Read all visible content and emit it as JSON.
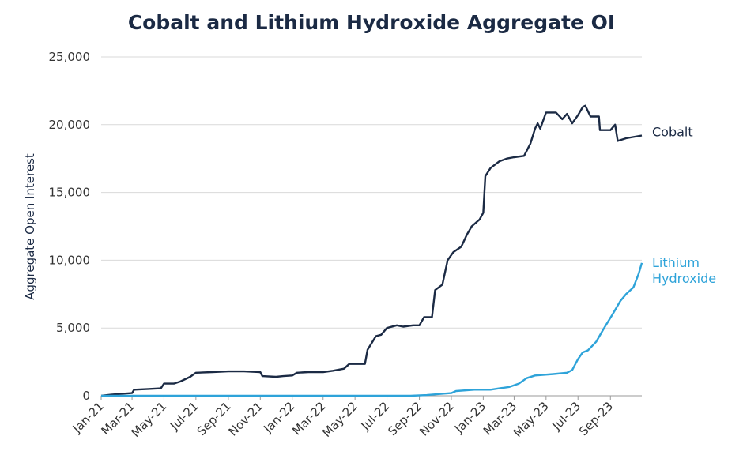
{
  "chart_data": {
    "type": "line",
    "title": "Cobalt and Lithium Hydroxide Aggregate OI",
    "xlabel": "",
    "ylabel": "Aggregate Open Interest",
    "ylim": [
      0,
      25000
    ],
    "y_ticks": [
      "0",
      "5,000",
      "10,000",
      "15,000",
      "20,000",
      "25,000"
    ],
    "x_ticks": [
      "Jan-21",
      "Mar-21",
      "May-21",
      "Jul-21",
      "Sep-21",
      "Nov-21",
      "Jan-22",
      "Mar-22",
      "May-22",
      "Jul-22",
      "Sep-22",
      "Nov-22",
      "Jan-23",
      "Mar-23",
      "May-23",
      "Jul-23",
      "Sep-23"
    ],
    "x_range": [
      "2021-01-01",
      "2023-10-31"
    ],
    "grid": "horizontal",
    "legend": "inline labels at line ends (right)",
    "series": [
      {
        "name": "Cobalt",
        "color": "#1b2a44",
        "points": [
          [
            "2021-01-01",
            0
          ],
          [
            "2021-01-20",
            80
          ],
          [
            "2021-02-10",
            150
          ],
          [
            "2021-03-01",
            200
          ],
          [
            "2021-03-05",
            450
          ],
          [
            "2021-04-01",
            500
          ],
          [
            "2021-04-25",
            550
          ],
          [
            "2021-05-01",
            900
          ],
          [
            "2021-05-20",
            900
          ],
          [
            "2021-06-01",
            1050
          ],
          [
            "2021-06-20",
            1400
          ],
          [
            "2021-07-01",
            1700
          ],
          [
            "2021-08-01",
            1750
          ],
          [
            "2021-09-01",
            1800
          ],
          [
            "2021-10-01",
            1800
          ],
          [
            "2021-11-01",
            1750
          ],
          [
            "2021-11-05",
            1450
          ],
          [
            "2021-12-01",
            1400
          ],
          [
            "2021-12-15",
            1450
          ],
          [
            "2022-01-01",
            1500
          ],
          [
            "2022-01-10",
            1700
          ],
          [
            "2022-02-01",
            1750
          ],
          [
            "2022-03-01",
            1750
          ],
          [
            "2022-03-20",
            1850
          ],
          [
            "2022-04-10",
            2000
          ],
          [
            "2022-04-20",
            2350
          ],
          [
            "2022-05-20",
            2350
          ],
          [
            "2022-05-25",
            3400
          ],
          [
            "2022-06-10",
            4400
          ],
          [
            "2022-06-20",
            4500
          ],
          [
            "2022-07-01",
            5000
          ],
          [
            "2022-07-20",
            5200
          ],
          [
            "2022-08-01",
            5100
          ],
          [
            "2022-08-20",
            5200
          ],
          [
            "2022-09-01",
            5200
          ],
          [
            "2022-09-10",
            5800
          ],
          [
            "2022-09-25",
            5800
          ],
          [
            "2022-10-01",
            7800
          ],
          [
            "2022-10-15",
            8200
          ],
          [
            "2022-10-25",
            10000
          ],
          [
            "2022-11-05",
            10600
          ],
          [
            "2022-11-20",
            11000
          ],
          [
            "2022-12-01",
            11900
          ],
          [
            "2022-12-10",
            12500
          ],
          [
            "2022-12-25",
            13000
          ],
          [
            "2023-01-01",
            13500
          ],
          [
            "2023-01-05",
            16200
          ],
          [
            "2023-01-15",
            16800
          ],
          [
            "2023-02-01",
            17300
          ],
          [
            "2023-02-15",
            17500
          ],
          [
            "2023-03-01",
            17600
          ],
          [
            "2023-03-20",
            17700
          ],
          [
            "2023-04-01",
            18600
          ],
          [
            "2023-04-10",
            19700
          ],
          [
            "2023-04-15",
            20100
          ],
          [
            "2023-04-20",
            19700
          ],
          [
            "2023-05-01",
            20900
          ],
          [
            "2023-05-20",
            20900
          ],
          [
            "2023-06-01",
            20400
          ],
          [
            "2023-06-10",
            20800
          ],
          [
            "2023-06-20",
            20100
          ],
          [
            "2023-07-01",
            20700
          ],
          [
            "2023-07-10",
            21300
          ],
          [
            "2023-07-15",
            21400
          ],
          [
            "2023-07-25",
            20600
          ],
          [
            "2023-08-10",
            20600
          ],
          [
            "2023-08-12",
            19600
          ],
          [
            "2023-09-01",
            19600
          ],
          [
            "2023-09-10",
            20000
          ],
          [
            "2023-09-15",
            18800
          ],
          [
            "2023-10-01",
            19000
          ],
          [
            "2023-10-31",
            19200
          ]
        ]
      },
      {
        "name": "Lithium Hydroxide",
        "color": "#2ea3d9",
        "points": [
          [
            "2021-01-01",
            0
          ],
          [
            "2022-08-15",
            0
          ],
          [
            "2022-09-15",
            50
          ],
          [
            "2022-10-15",
            150
          ],
          [
            "2022-11-01",
            200
          ],
          [
            "2022-11-10",
            350
          ],
          [
            "2022-12-15",
            450
          ],
          [
            "2023-01-15",
            450
          ],
          [
            "2023-02-01",
            550
          ],
          [
            "2023-02-20",
            650
          ],
          [
            "2023-03-10",
            900
          ],
          [
            "2023-03-25",
            1300
          ],
          [
            "2023-04-10",
            1500
          ],
          [
            "2023-05-15",
            1600
          ],
          [
            "2023-06-10",
            1700
          ],
          [
            "2023-06-20",
            1900
          ],
          [
            "2023-07-01",
            2700
          ],
          [
            "2023-07-10",
            3200
          ],
          [
            "2023-07-20",
            3350
          ],
          [
            "2023-08-05",
            4000
          ],
          [
            "2023-08-20",
            5000
          ],
          [
            "2023-09-05",
            6000
          ],
          [
            "2023-09-20",
            7000
          ],
          [
            "2023-10-01",
            7500
          ],
          [
            "2023-10-15",
            8000
          ],
          [
            "2023-10-25",
            9000
          ],
          [
            "2023-10-31",
            9800
          ]
        ]
      }
    ]
  }
}
